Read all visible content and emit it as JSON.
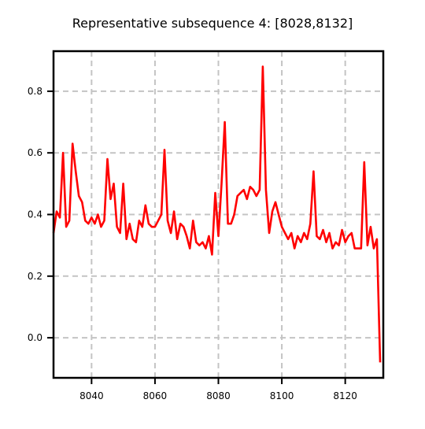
{
  "chart_data": {
    "type": "line",
    "title": "Representative subsequence 4: [8028,8132]",
    "xlabel": "",
    "ylabel": "",
    "xlim": [
      8028,
      8132
    ],
    "ylim": [
      -0.13,
      0.93
    ],
    "xticks": [
      8040,
      8060,
      8080,
      8100,
      8120
    ],
    "yticks": [
      0.0,
      0.2,
      0.4,
      0.6,
      0.8
    ],
    "ytick_labels": [
      "0.0",
      "0.2",
      "0.4",
      "0.6",
      "0.8"
    ],
    "grid": true,
    "legend": "none",
    "series": [
      {
        "color": "#ff0000",
        "x": [
          8028,
          8029,
          8030,
          8031,
          8032,
          8033,
          8034,
          8035,
          8036,
          8037,
          8038,
          8039,
          8040,
          8041,
          8042,
          8043,
          8044,
          8045,
          8046,
          8047,
          8048,
          8049,
          8050,
          8051,
          8052,
          8053,
          8054,
          8055,
          8056,
          8057,
          8058,
          8059,
          8060,
          8061,
          8062,
          8063,
          8064,
          8065,
          8066,
          8067,
          8068,
          8069,
          8070,
          8071,
          8072,
          8073,
          8074,
          8075,
          8076,
          8077,
          8078,
          8079,
          8080,
          8081,
          8082,
          8083,
          8084,
          8085,
          8086,
          8087,
          8088,
          8089,
          8090,
          8091,
          8092,
          8093,
          8094,
          8095,
          8096,
          8097,
          8098,
          8099,
          8100,
          8101,
          8102,
          8103,
          8104,
          8105,
          8106,
          8107,
          8108,
          8109,
          8110,
          8111,
          8112,
          8113,
          8114,
          8115,
          8116,
          8117,
          8118,
          8119,
          8120,
          8121,
          8122,
          8123,
          8124,
          8125,
          8126,
          8127,
          8128,
          8129,
          8130,
          8131
        ],
        "y": [
          0.34,
          0.41,
          0.39,
          0.6,
          0.36,
          0.38,
          0.63,
          0.54,
          0.46,
          0.44,
          0.38,
          0.37,
          0.39,
          0.37,
          0.4,
          0.36,
          0.38,
          0.58,
          0.45,
          0.5,
          0.36,
          0.34,
          0.5,
          0.32,
          0.37,
          0.32,
          0.31,
          0.38,
          0.36,
          0.43,
          0.37,
          0.36,
          0.36,
          0.38,
          0.4,
          0.61,
          0.38,
          0.34,
          0.41,
          0.32,
          0.37,
          0.36,
          0.33,
          0.29,
          0.38,
          0.31,
          0.3,
          0.31,
          0.29,
          0.33,
          0.27,
          0.47,
          0.33,
          0.5,
          0.7,
          0.37,
          0.37,
          0.4,
          0.46,
          0.47,
          0.48,
          0.45,
          0.49,
          0.48,
          0.46,
          0.48,
          0.88,
          0.48,
          0.34,
          0.41,
          0.44,
          0.4,
          0.36,
          0.34,
          0.32,
          0.34,
          0.29,
          0.33,
          0.31,
          0.34,
          0.32,
          0.37,
          0.54,
          0.33,
          0.32,
          0.35,
          0.31,
          0.34,
          0.29,
          0.31,
          0.3,
          0.35,
          0.31,
          0.33,
          0.34,
          0.29,
          0.29,
          0.29,
          0.57,
          0.3,
          0.36,
          0.29,
          0.32,
          -0.08
        ]
      }
    ]
  }
}
